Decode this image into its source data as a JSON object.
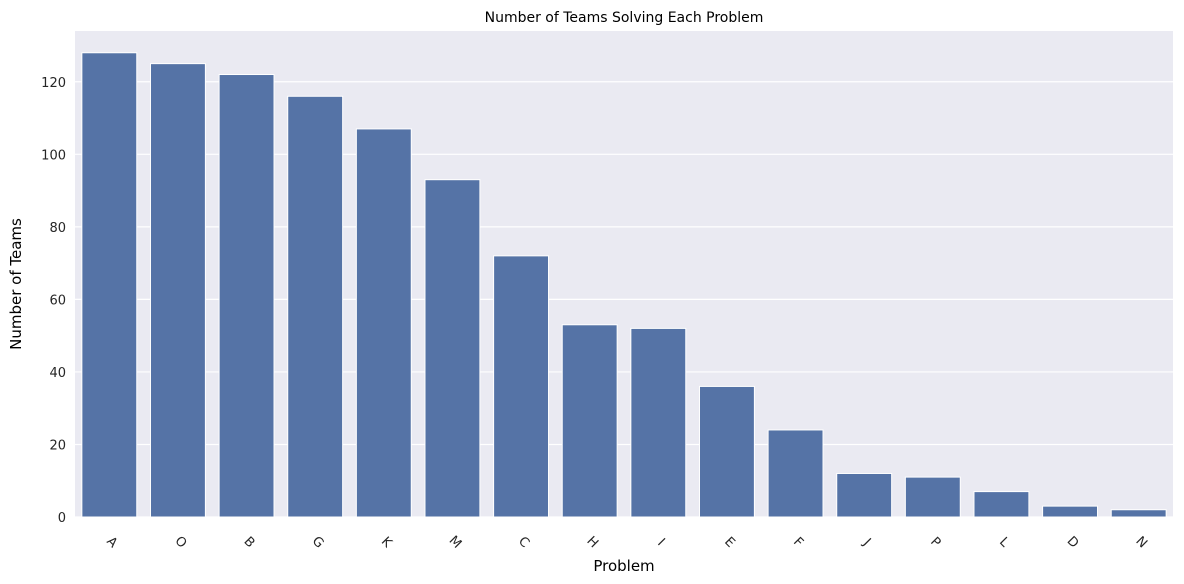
{
  "chart_data": {
    "type": "bar",
    "title": "Number of Teams Solving Each Problem",
    "xlabel": "Problem",
    "ylabel": "Number of Teams",
    "categories": [
      "A",
      "O",
      "B",
      "G",
      "K",
      "M",
      "C",
      "H",
      "I",
      "E",
      "F",
      "J",
      "P",
      "L",
      "D",
      "N"
    ],
    "values": [
      128,
      125,
      122,
      116,
      107,
      93,
      72,
      53,
      52,
      36,
      24,
      12,
      11,
      7,
      3,
      2
    ],
    "ylim": [
      0,
      134
    ],
    "yticks": [
      0,
      20,
      40,
      60,
      80,
      100,
      120
    ],
    "grid": true,
    "x_tick_rotation": 45,
    "colors": {
      "bar": "#5573a6",
      "plot_background": "#eaeaf2",
      "grid": "#ffffff",
      "text": "#262626"
    }
  }
}
